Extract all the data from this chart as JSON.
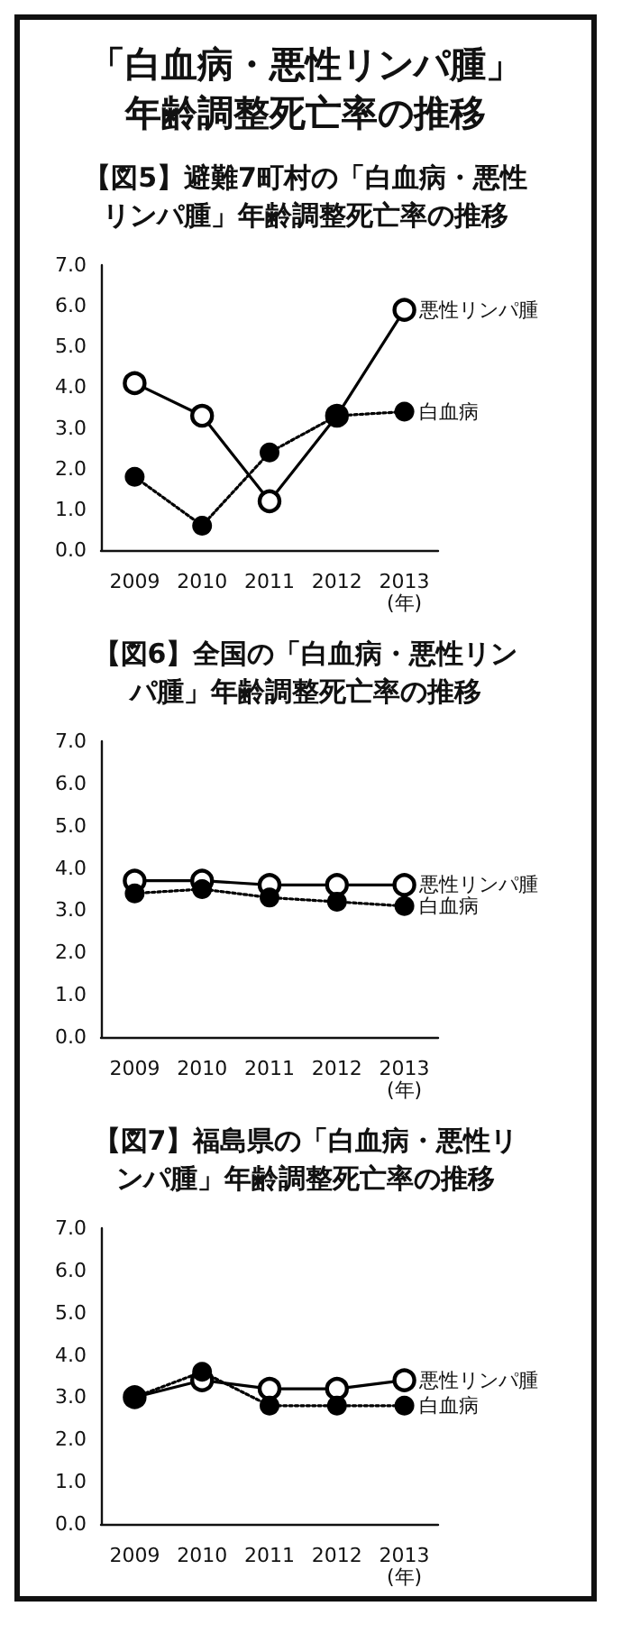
{
  "chart_data": [
    {
      "type": "line",
      "title": "「白血病・悪性リンパ腫」年齢調整死亡率の推移",
      "subtitle": "【図5】避難7町村の「白血病・悪性リンパ腫」年齢調整死亡率の推移",
      "categories": [
        "2009",
        "2010",
        "2011",
        "2012",
        "2013"
      ],
      "xlabel": "(年)",
      "series": [
        {
          "name": "悪性リンパ腫",
          "color": "#000000",
          "line_style": "solid",
          "values": [
            4.1,
            3.3,
            1.2,
            3.3,
            5.9
          ]
        },
        {
          "name": "白血病",
          "color": "#000000",
          "line_style": "dotted",
          "values": [
            1.8,
            0.6,
            2.4,
            3.3,
            3.4
          ]
        }
      ],
      "ylim": [
        0,
        7
      ],
      "yticks": [
        {
          "value": 0,
          "label": "0.0"
        },
        {
          "value": 1,
          "label": "1.0"
        },
        {
          "value": 2,
          "label": "2.0"
        },
        {
          "value": 3,
          "label": "3.0"
        },
        {
          "value": 4,
          "label": "4.0"
        },
        {
          "value": 5,
          "label": "5.0"
        },
        {
          "value": 6,
          "label": "6.0"
        },
        {
          "value": 7,
          "label": "7.0"
        }
      ],
      "grid": false,
      "legend": false,
      "marker": "circle"
    },
    {
      "type": "line",
      "title": "【図6】全国の「白血病・悪性リンパ腫」年齢調整死亡率の推移",
      "categories": [
        "2009",
        "2010",
        "2011",
        "2012",
        "2013"
      ],
      "xlabel": "(年)",
      "series": [
        {
          "name": "悪性リンパ腫",
          "color": "#000000",
          "line_style": "solid",
          "values": [
            3.7,
            3.7,
            3.6,
            3.6,
            3.6
          ]
        },
        {
          "name": "白血病",
          "color": "#000000",
          "line_style": "dotted",
          "values": [
            3.4,
            3.5,
            3.3,
            3.2,
            3.1
          ]
        }
      ],
      "ylim": [
        0,
        7
      ],
      "yticks": [
        {
          "value": 0,
          "label": "0.0"
        },
        {
          "value": 1,
          "label": "1.0"
        },
        {
          "value": 2,
          "label": "2.0"
        },
        {
          "value": 3,
          "label": "3.0"
        },
        {
          "value": 4,
          "label": "4.0"
        },
        {
          "value": 5,
          "label": "5.0"
        },
        {
          "value": 6,
          "label": "6.0"
        },
        {
          "value": 7,
          "label": "7.0"
        }
      ],
      "grid": false,
      "legend": false,
      "marker": "circle"
    },
    {
      "type": "line",
      "title": "【図7】福島県の「白血病・悪性リンパ腫」年齢調整死亡率の推移",
      "categories": [
        "2009",
        "2010",
        "2011",
        "2012",
        "2013"
      ],
      "xlabel": "(年)",
      "series": [
        {
          "name": "悪性リンパ腫",
          "color": "#000000",
          "line_style": "solid",
          "values": [
            3.0,
            3.4,
            3.2,
            3.2,
            3.4
          ]
        },
        {
          "name": "白血病",
          "color": "#000000",
          "line_style": "dotted",
          "values": [
            3.0,
            3.6,
            2.8,
            2.8,
            2.8
          ]
        }
      ],
      "ylim": [
        0,
        7
      ],
      "yticks": [
        {
          "value": 0,
          "label": "0.0"
        },
        {
          "value": 1,
          "label": "1.0"
        },
        {
          "value": 2,
          "label": "2.0"
        },
        {
          "value": 3,
          "label": "3.0"
        },
        {
          "value": 4,
          "label": "4.0"
        },
        {
          "value": 5,
          "label": "5.0"
        },
        {
          "value": 6,
          "label": "6.0"
        },
        {
          "value": 7,
          "label": "7.0"
        }
      ],
      "grid": false,
      "legend": false,
      "marker": "circle"
    }
  ]
}
